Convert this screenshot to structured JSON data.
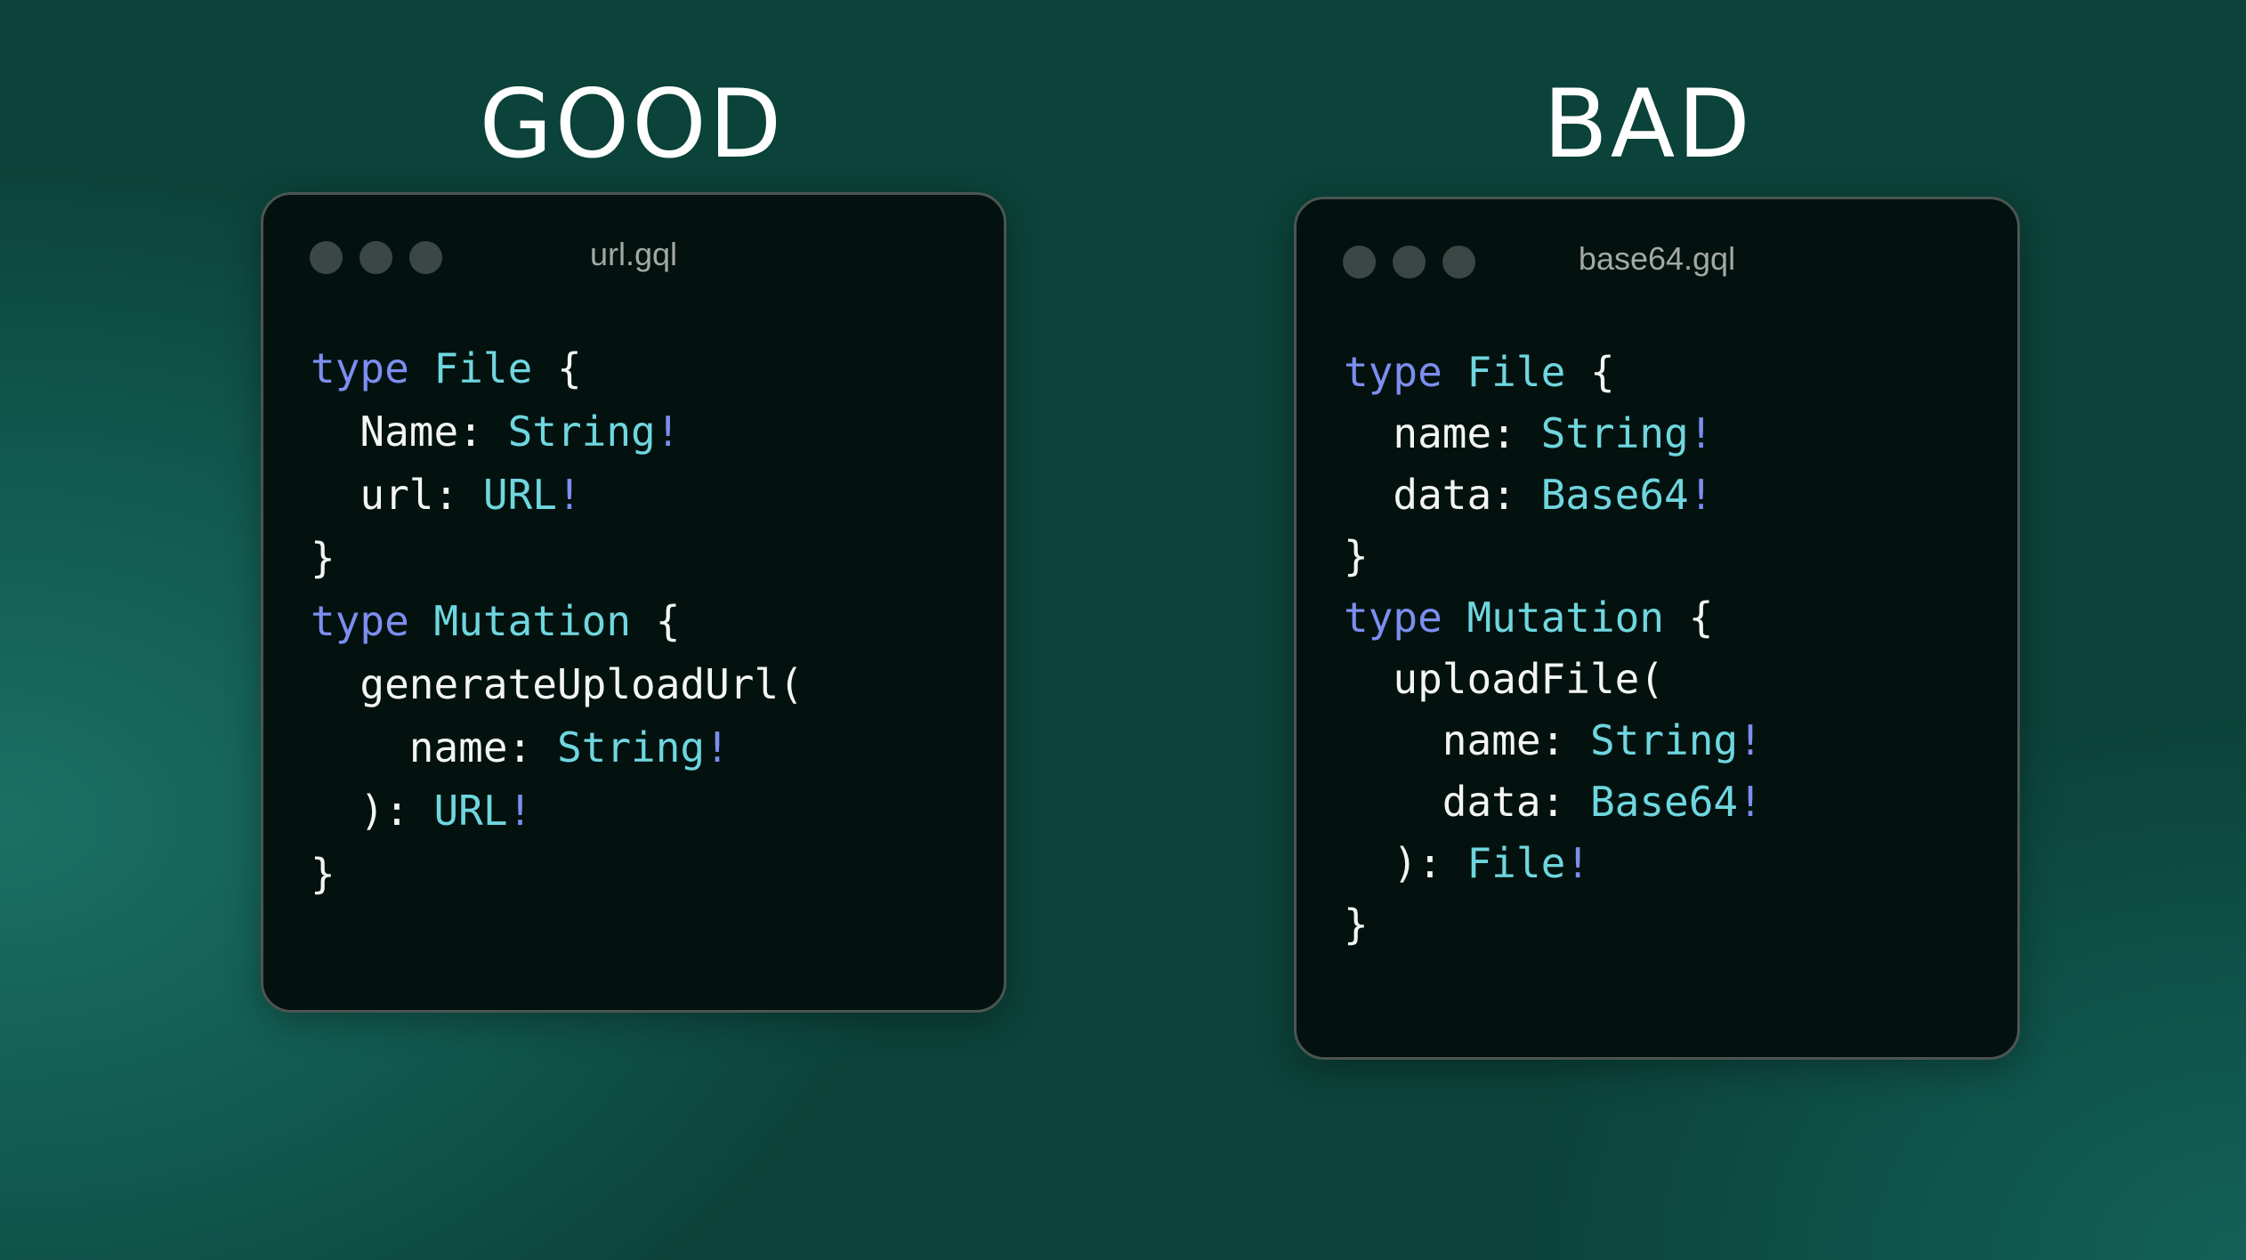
{
  "good": {
    "heading": "GOOD",
    "filename": "url.gql",
    "lines": [
      [
        [
          "type",
          "kw"
        ],
        [
          " ",
          "pl"
        ],
        [
          "File",
          "ty"
        ],
        [
          " {",
          "pl"
        ]
      ],
      [
        [
          "  Name: ",
          "pl"
        ],
        [
          "String",
          "ty"
        ],
        [
          "!",
          "bang"
        ]
      ],
      [
        [
          "  url: ",
          "pl"
        ],
        [
          "URL",
          "ty"
        ],
        [
          "!",
          "bang"
        ]
      ],
      [
        [
          "}",
          "pl"
        ]
      ],
      [
        [
          "type",
          "kw"
        ],
        [
          " ",
          "pl"
        ],
        [
          "Mutation",
          "ty"
        ],
        [
          " {",
          "pl"
        ]
      ],
      [
        [
          "  generateUploadUrl(",
          "pl"
        ]
      ],
      [
        [
          "    name: ",
          "pl"
        ],
        [
          "String",
          "ty"
        ],
        [
          "!",
          "bang"
        ]
      ],
      [
        [
          "  ): ",
          "pl"
        ],
        [
          "URL",
          "ty"
        ],
        [
          "!",
          "bang"
        ]
      ],
      [
        [
          "}",
          "pl"
        ]
      ]
    ]
  },
  "bad": {
    "heading": "BAD",
    "filename": "base64.gql",
    "lines": [
      [
        [
          "type",
          "kw"
        ],
        [
          " ",
          "pl"
        ],
        [
          "File",
          "ty"
        ],
        [
          " {",
          "pl"
        ]
      ],
      [
        [
          "  name: ",
          "pl"
        ],
        [
          "String",
          "ty"
        ],
        [
          "!",
          "bang"
        ]
      ],
      [
        [
          "  data: ",
          "pl"
        ],
        [
          "Base64",
          "ty"
        ],
        [
          "!",
          "bang"
        ]
      ],
      [
        [
          "}",
          "pl"
        ]
      ],
      [
        [
          "type",
          "kw"
        ],
        [
          " ",
          "pl"
        ],
        [
          "Mutation",
          "ty"
        ],
        [
          " {",
          "pl"
        ]
      ],
      [
        [
          "  uploadFile(",
          "pl"
        ]
      ],
      [
        [
          "    name: ",
          "pl"
        ],
        [
          "String",
          "ty"
        ],
        [
          "!",
          "bang"
        ]
      ],
      [
        [
          "    data: ",
          "pl"
        ],
        [
          "Base64",
          "ty"
        ],
        [
          "!",
          "bang"
        ]
      ],
      [
        [
          "  ): ",
          "pl"
        ],
        [
          "File",
          "ty"
        ],
        [
          "!",
          "bang"
        ]
      ],
      [
        [
          "}",
          "pl"
        ]
      ]
    ]
  },
  "colors": {
    "keyword": "#7d8ef0",
    "type": "#6fd6df",
    "text": "#f3f5f4",
    "window": "#03120f"
  }
}
